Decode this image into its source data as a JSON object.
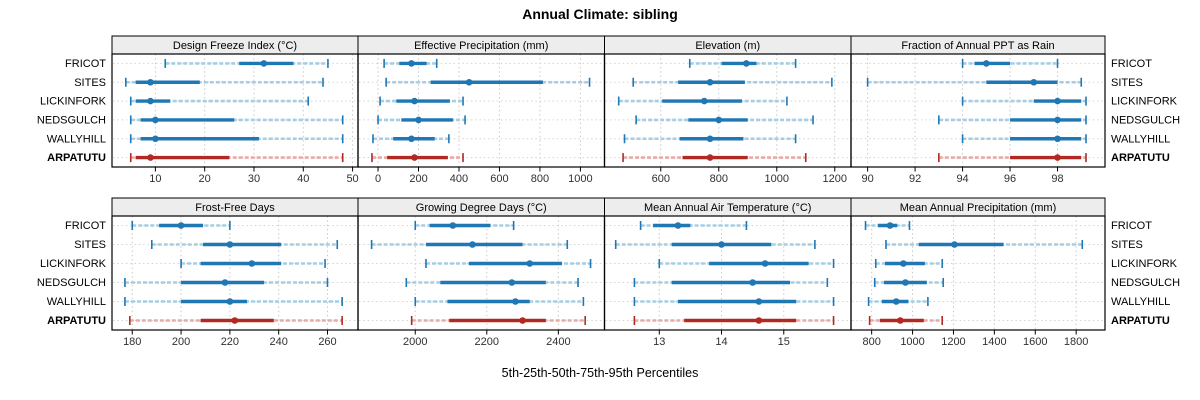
{
  "title": "Annual Climate: sibling",
  "caption": "5th-25th-50th-75th-95th Percentiles",
  "sites": [
    "FRICOT",
    "SITES",
    "LICKINFORK",
    "NEDSGULCH",
    "WALLYHILL",
    "ARPATUTU"
  ],
  "highlight_site": "ARPATUTU",
  "colors": {
    "blue_dark": "#1f77b4",
    "blue_light": "#a6cee3",
    "red_dark": "#b02a23",
    "red_light": "#e8aba6",
    "grid": "#c9c9c9",
    "row_guide": "#d4d4d4",
    "strip_bg": "#ededed",
    "frame": "#000000",
    "tick_text": "#303030",
    "text": "#000000"
  },
  "chart_data": {
    "type": "scatter",
    "subtype": "percentile-interval-dotplot",
    "percentiles": [
      5,
      25,
      50,
      75,
      95
    ],
    "legend_position": "none",
    "grid": "dotted",
    "panels": [
      {
        "title": "Design Freeze Index (°C)",
        "row": 0,
        "col": 0,
        "ticks": [
          10,
          20,
          30,
          40,
          50
        ],
        "domain": [
          1.2,
          51.1
        ],
        "values": [
          [
            12,
            27,
            32,
            38,
            45
          ],
          [
            4,
            6,
            9,
            19,
            44
          ],
          [
            5,
            6,
            9,
            13,
            41
          ],
          [
            5,
            7,
            10,
            26,
            48
          ],
          [
            5,
            7,
            10,
            31,
            48
          ],
          [
            5,
            6,
            9,
            25,
            48
          ]
        ]
      },
      {
        "title": "Effective Precipitation (mm)",
        "row": 0,
        "col": 1,
        "ticks": [
          0,
          200,
          400,
          600,
          800,
          1000
        ],
        "domain": [
          -99,
          1119
        ],
        "values": [
          [
            30,
            105,
            165,
            240,
            290
          ],
          [
            40,
            260,
            450,
            815,
            1045
          ],
          [
            10,
            90,
            180,
            355,
            420
          ],
          [
            0,
            115,
            200,
            370,
            430
          ],
          [
            -25,
            75,
            165,
            280,
            350
          ],
          [
            -30,
            45,
            180,
            345,
            420
          ]
        ]
      },
      {
        "title": "Elevation (m)",
        "row": 0,
        "col": 2,
        "ticks": [
          600,
          800,
          1000,
          1200
        ],
        "domain": [
          406,
          1256
        ],
        "values": [
          [
            700,
            810,
            895,
            930,
            1065
          ],
          [
            505,
            660,
            770,
            890,
            1190
          ],
          [
            455,
            605,
            750,
            880,
            1035
          ],
          [
            515,
            695,
            800,
            900,
            1125
          ],
          [
            475,
            665,
            770,
            885,
            1065
          ],
          [
            470,
            675,
            770,
            900,
            1100
          ]
        ]
      },
      {
        "title": "Fraction of Annual PPT as Rain",
        "row": 0,
        "col": 3,
        "ticks": [
          90,
          92,
          94,
          96,
          98
        ],
        "domain": [
          89.3,
          100.0
        ],
        "values": [
          [
            94,
            94.5,
            95,
            96,
            98
          ],
          [
            90,
            95,
            97,
            98,
            99
          ],
          [
            94,
            97,
            98,
            99,
            99.2
          ],
          [
            93,
            96,
            98,
            99,
            99.2
          ],
          [
            94,
            96,
            98,
            99,
            99.2
          ],
          [
            93,
            96,
            98,
            99,
            99.2
          ]
        ]
      },
      {
        "title": "Frost-Free Days",
        "row": 1,
        "col": 0,
        "ticks": [
          180,
          200,
          220,
          240,
          260
        ],
        "domain": [
          171.7,
          272.5
        ],
        "values": [
          [
            180,
            191,
            200,
            209,
            220
          ],
          [
            188,
            209,
            220,
            241,
            264
          ],
          [
            200,
            208,
            229,
            241,
            259
          ],
          [
            177,
            200,
            218,
            234,
            260
          ],
          [
            177,
            200,
            220,
            227,
            266
          ],
          [
            179,
            208,
            222,
            238,
            266
          ]
        ]
      },
      {
        "title": "Growing Degree Days (°C)",
        "row": 1,
        "col": 1,
        "ticks": [
          2000,
          2200,
          2400
        ],
        "domain": [
          1840,
          2529
        ],
        "values": [
          [
            2000,
            2040,
            2105,
            2210,
            2275
          ],
          [
            1878,
            2030,
            2160,
            2300,
            2425
          ],
          [
            2030,
            2150,
            2320,
            2410,
            2490
          ],
          [
            1975,
            2070,
            2270,
            2365,
            2455
          ],
          [
            2000,
            2090,
            2280,
            2320,
            2470
          ],
          [
            1990,
            2095,
            2300,
            2365,
            2475
          ]
        ]
      },
      {
        "title": "Mean Annual Air Temperature (°C)",
        "row": 1,
        "col": 2,
        "ticks": [
          13,
          14,
          15
        ],
        "domain": [
          12.12,
          16.08
        ],
        "values": [
          [
            12.7,
            12.9,
            13.3,
            13.5,
            14.4
          ],
          [
            12.3,
            13.2,
            14.0,
            14.8,
            15.5
          ],
          [
            13.0,
            13.8,
            14.7,
            15.4,
            15.8
          ],
          [
            12.6,
            13.2,
            14.5,
            15.1,
            15.7
          ],
          [
            12.6,
            13.3,
            14.6,
            15.2,
            15.8
          ],
          [
            12.6,
            13.4,
            14.6,
            15.2,
            15.8
          ]
        ]
      },
      {
        "title": "Mean Annual Precipitation (mm)",
        "row": 1,
        "col": 3,
        "ticks": [
          800,
          1000,
          1200,
          1400,
          1600,
          1800
        ],
        "domain": [
          699,
          1941
        ],
        "values": [
          [
            770,
            830,
            890,
            925,
            985
          ],
          [
            870,
            1030,
            1205,
            1445,
            1830
          ],
          [
            820,
            865,
            955,
            1060,
            1145
          ],
          [
            815,
            860,
            965,
            1070,
            1150
          ],
          [
            785,
            850,
            920,
            980,
            1075
          ],
          [
            790,
            840,
            940,
            1055,
            1145
          ]
        ]
      }
    ]
  }
}
